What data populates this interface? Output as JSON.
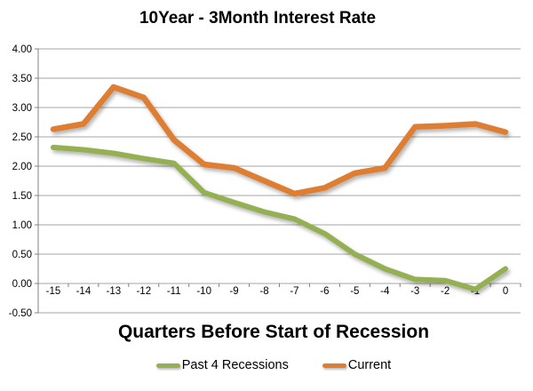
{
  "chart_data": {
    "type": "line",
    "title": "10Year - 3Month Interest Rate",
    "xlabel": "Quarters Before Start of Recession",
    "ylabel": "",
    "categories": [
      "-15",
      "-14",
      "-13",
      "-12",
      "-11",
      "-10",
      "-9",
      "-8",
      "-7",
      "-6",
      "-5",
      "-4",
      "-3",
      "-2",
      "-1",
      "0"
    ],
    "series": [
      {
        "name": "Past 4 Recessions",
        "color": "#94B053",
        "values": [
          2.32,
          2.28,
          2.22,
          2.13,
          2.05,
          1.55,
          1.38,
          1.22,
          1.1,
          0.85,
          0.5,
          0.25,
          0.07,
          0.05,
          -0.1,
          0.25
        ]
      },
      {
        "name": "Current",
        "color": "#DD7E33",
        "values": [
          2.63,
          2.72,
          3.35,
          3.17,
          2.45,
          2.03,
          1.97,
          1.75,
          1.53,
          1.63,
          1.88,
          1.97,
          2.67,
          2.69,
          2.72,
          2.58
        ]
      }
    ],
    "ylim": [
      -0.5,
      4.0
    ],
    "ytick_step": 0.5,
    "ytick_labels": [
      "4.00",
      "3.50",
      "3.00",
      "2.50",
      "2.00",
      "1.50",
      "1.00",
      "0.50",
      "0.00",
      "-0.50"
    ],
    "grid": "horizontal",
    "legend_position": "bottom"
  },
  "colors": {
    "background": "#FFFFFF",
    "gridline": "#A6A6A6",
    "axis": "#808080",
    "text": "#000000"
  }
}
